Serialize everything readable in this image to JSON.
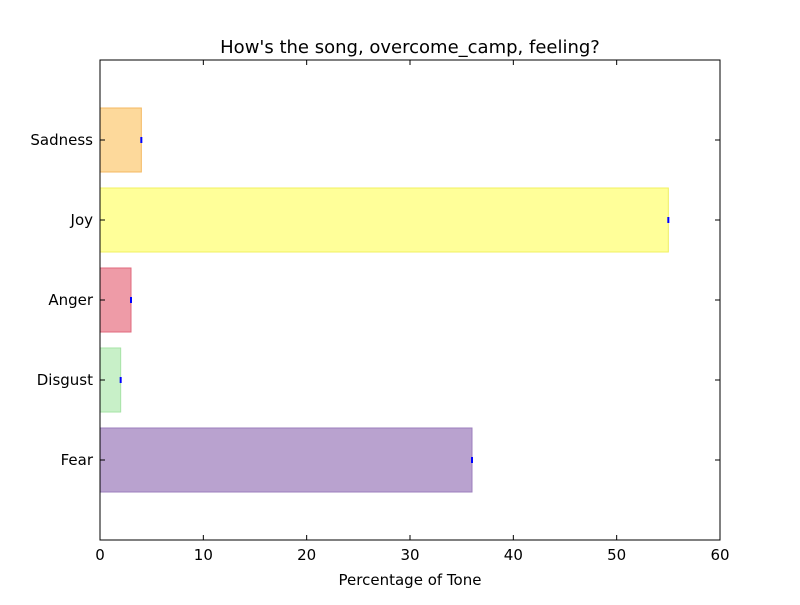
{
  "chart_data": {
    "type": "bar",
    "orientation": "horizontal",
    "title": "How's the song, overcome_camp, feeling?",
    "xlabel": "Percentage of Tone",
    "ylabel": "",
    "xlim": [
      0,
      60
    ],
    "xticks": [
      0,
      10,
      20,
      30,
      40,
      50,
      60
    ],
    "grid": false,
    "legend": "none",
    "categories": [
      "Fear",
      "Disgust",
      "Anger",
      "Joy",
      "Sadness"
    ],
    "values": [
      36,
      2,
      3,
      55,
      4
    ],
    "colors": [
      "#b9a2cf",
      "#c8f0c8",
      "#ee9ba7",
      "#ffff99",
      "#fdd99b"
    ],
    "edge_colors": [
      "#9c7fbd",
      "#a6e3a6",
      "#e06a7c",
      "#f0f060",
      "#f4b860"
    ],
    "marker_color": "#0000ff"
  }
}
